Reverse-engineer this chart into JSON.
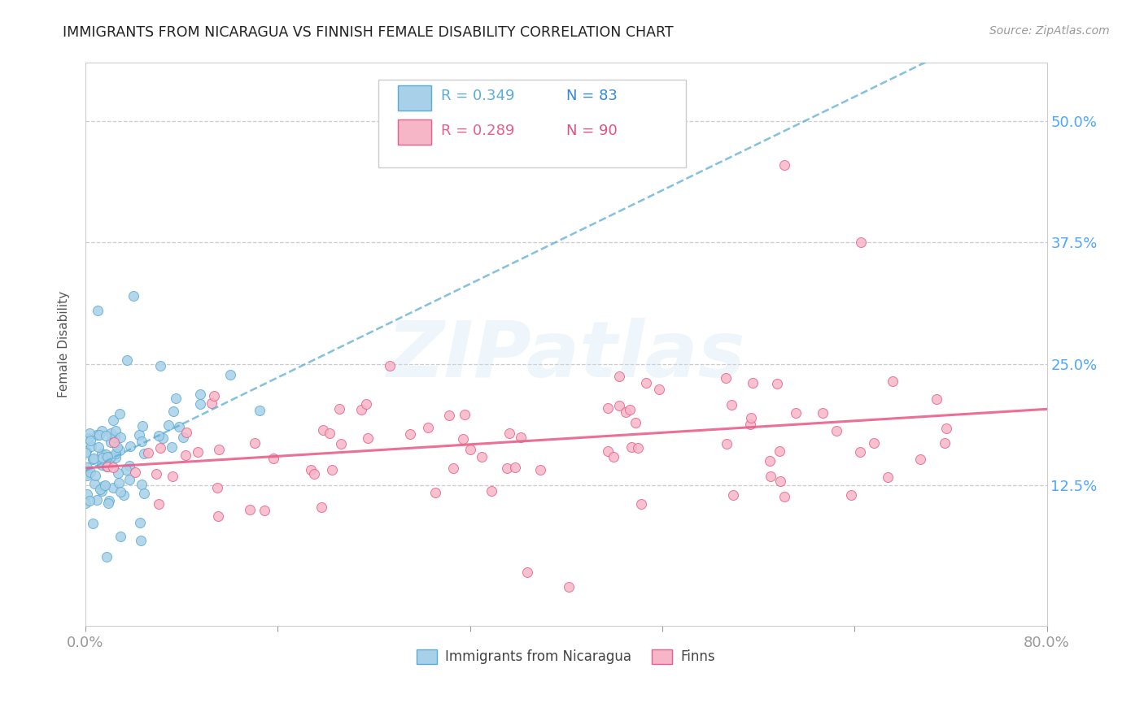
{
  "title": "IMMIGRANTS FROM NICARAGUA VS FINNISH FEMALE DISABILITY CORRELATION CHART",
  "source": "Source: ZipAtlas.com",
  "ylabel": "Female Disability",
  "ytick_labels": [
    "12.5%",
    "25.0%",
    "37.5%",
    "50.0%"
  ],
  "ytick_values": [
    0.125,
    0.25,
    0.375,
    0.5
  ],
  "xlim": [
    0.0,
    0.8
  ],
  "ylim": [
    -0.02,
    0.56
  ],
  "legend_r1": "R = 0.349",
  "legend_n1": "N = 83",
  "legend_r2": "R = 0.289",
  "legend_n2": "N = 90",
  "color_nicaragua": "#a8d0e8",
  "color_finns": "#f7b6c8",
  "color_line_nicaragua": "#5bacd4",
  "color_line_finns": "#e8608a",
  "watermark_text": "ZIPatlas",
  "title_color": "#222222",
  "axis_label_color": "#4da6ff",
  "nicaragua_seed": 1234,
  "finns_seed": 5678
}
